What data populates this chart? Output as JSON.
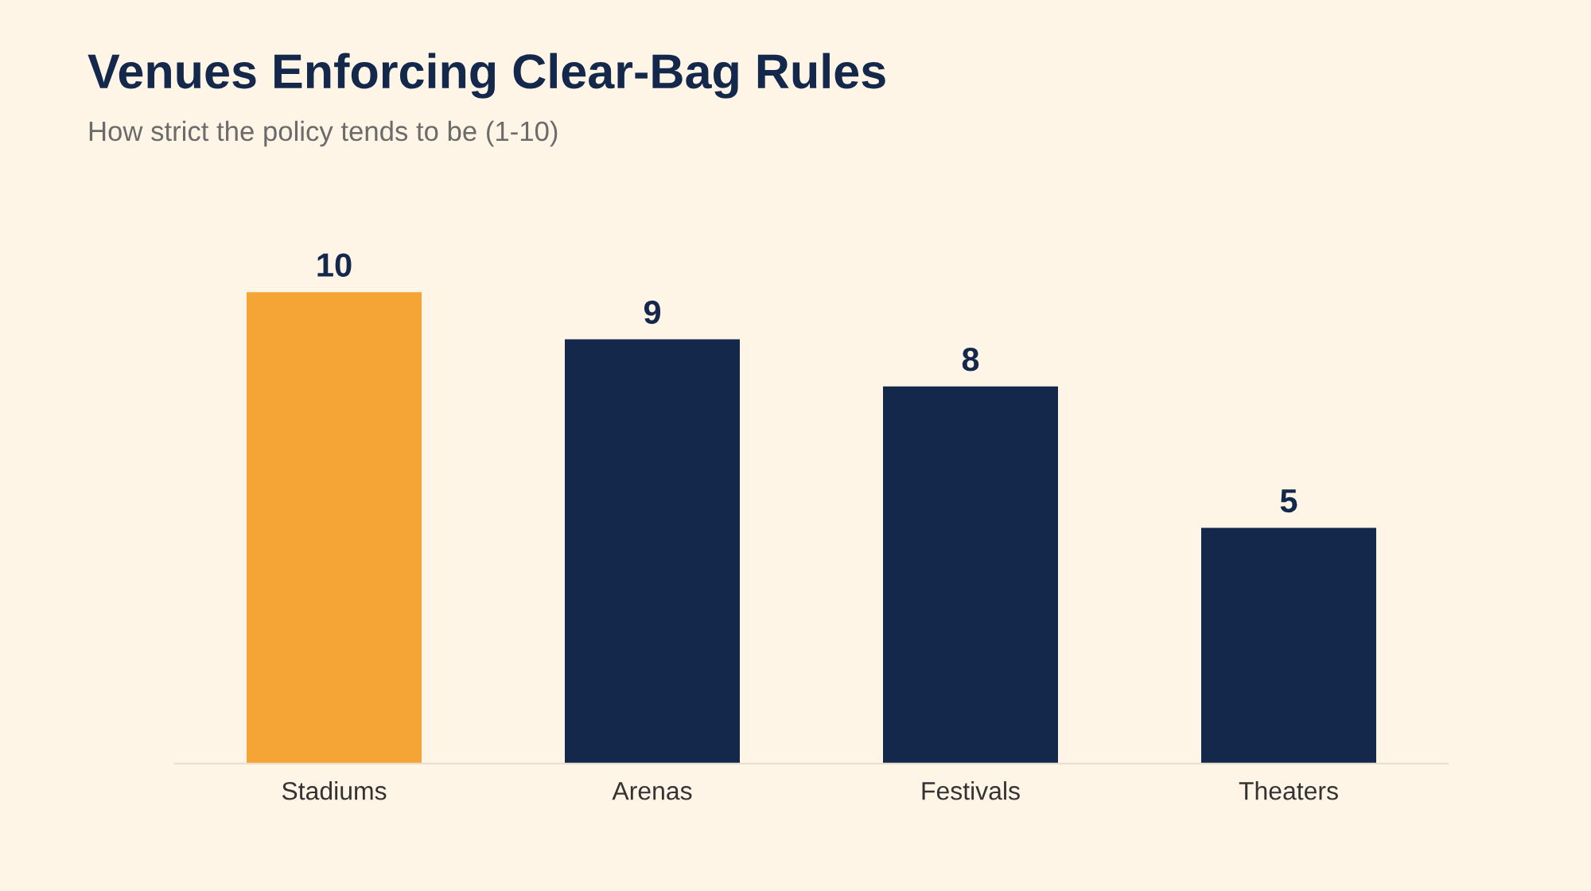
{
  "chart_data": {
    "type": "bar",
    "title": "Venues Enforcing Clear-Bag Rules",
    "subtitle": "How strict the policy tends to be (1-10)",
    "categories": [
      "Stadiums",
      "Arenas",
      "Festivals",
      "Theaters"
    ],
    "values": [
      10,
      9,
      8,
      5
    ],
    "colors": [
      "#f5a535",
      "#14284b",
      "#14284b",
      "#14284b"
    ],
    "data_labels": true,
    "grid": false,
    "legend": false
  }
}
